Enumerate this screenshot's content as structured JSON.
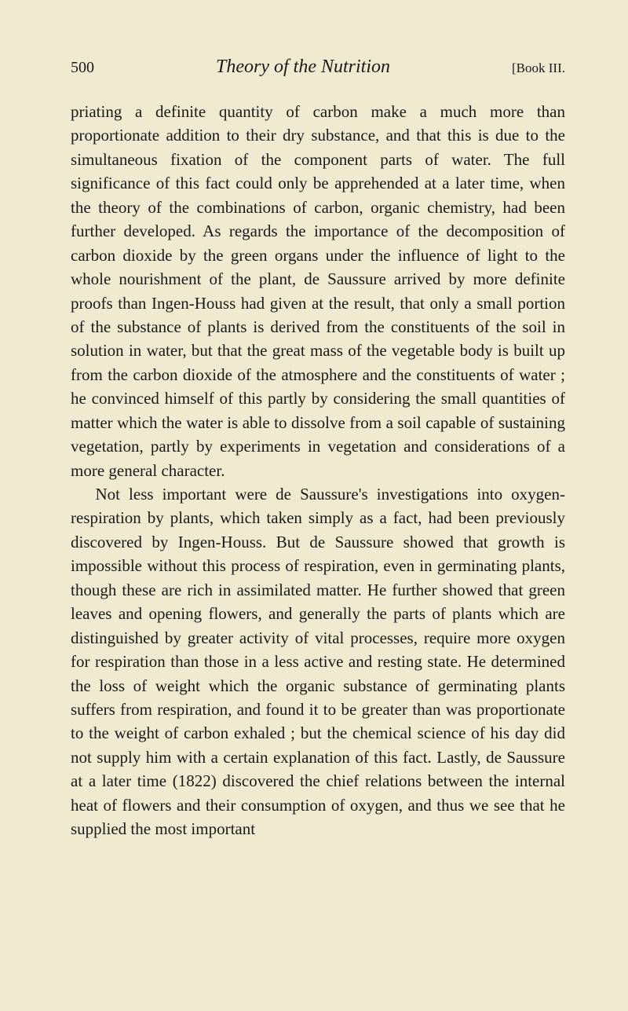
{
  "header": {
    "page_number": "500",
    "title": "Theory of the Nutrition",
    "book_ref": "[Book III."
  },
  "body": {
    "para1": "priating a definite quantity of carbon make a much more than proportionate addition to their dry substance, and that this is due to the simultaneous fixation of the component parts of water. The full significance of this fact could only be apprehended at a later time, when the theory of the combinations of carbon, organic chemistry, had been further developed. As regards the importance of the decomposition of carbon dioxide by the green organs under the influence of light to the whole nourishment of the plant, de Saussure arrived by more definite proofs than Ingen-Houss had given at the result, that only a small portion of the substance of plants is derived from the constituents of the soil in solution in water, but that the great mass of the vegetable body is built up from the carbon dioxide of the atmosphere and the constituents of water ; he convinced himself of this partly by considering the small quantities of matter which the water is able to dissolve from a soil capable of sustaining vegetation, partly by experiments in vegetation and considerations of a more general character.",
    "para2": "Not less important were de Saussure's investigations into oxygen-respiration by plants, which taken simply as a fact, had been previously discovered by Ingen-Houss. But de Saussure showed that growth is impossible without this process of respiration, even in germinating plants, though these are rich in assimilated matter. He further showed that green leaves and opening flowers, and generally the parts of plants which are distinguished by greater activity of vital processes, require more oxygen for respiration than those in a less active and resting state. He determined the loss of weight which the organic substance of germinating plants suffers from respiration, and found it to be greater than was proportionate to the weight of carbon exhaled ; but the chemical science of his day did not supply him with a certain explanation of this fact. Lastly, de Saussure at a later time (1822) discovered the chief relations between the internal heat of flowers and their consumption of oxygen, and thus we see that he supplied the most important"
  },
  "styling": {
    "background_color": "#f0ead0",
    "text_color": "#1a1a1a",
    "body_fontsize": 21,
    "title_fontsize": 24,
    "header_fontsize": 20,
    "line_height": 1.45,
    "font_family": "Georgia, Times New Roman, serif"
  }
}
